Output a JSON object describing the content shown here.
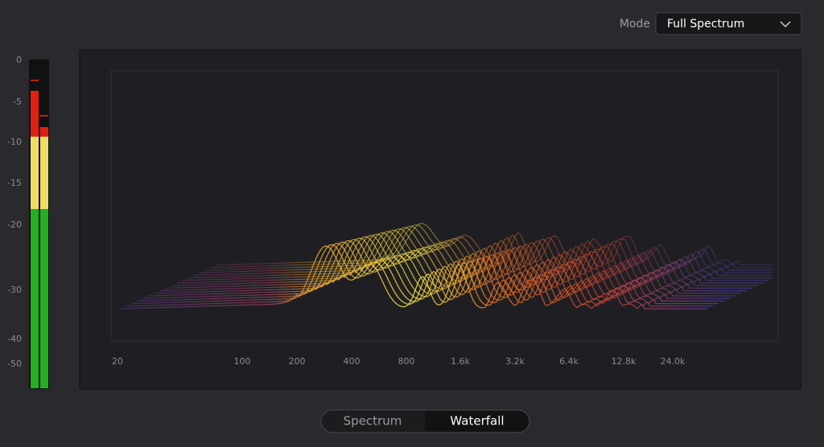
{
  "mode": {
    "label": "Mode",
    "value": "Full Spectrum"
  },
  "meter_scale": [
    "0",
    "-5",
    "-10",
    "-15",
    "-20",
    "-30",
    "-40",
    "-50"
  ],
  "frequency_axis": [
    "20",
    "100",
    "200",
    "400",
    "800",
    "1.6k",
    "3.2k",
    "6.4k",
    "12.8k",
    "24.0k"
  ],
  "view_toggle": {
    "options": [
      "Spectrum",
      "Waterfall"
    ],
    "selected": "Waterfall"
  }
}
